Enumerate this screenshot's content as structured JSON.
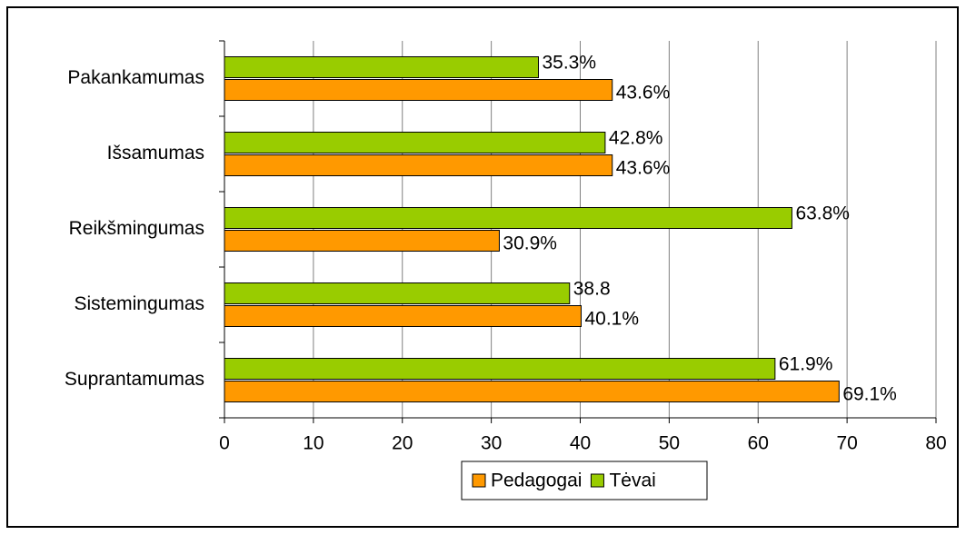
{
  "chart_data": {
    "type": "hbar",
    "categories": [
      "Pakankamumas",
      "Išsamumas",
      "Reikšmingumas",
      "Sistemingumas",
      "Suprantamumas"
    ],
    "series": [
      {
        "name": "Pedagogai",
        "color": "#ff9900",
        "values": [
          43.6,
          43.6,
          30.9,
          40.1,
          69.1
        ],
        "value_labels": [
          "43.6%",
          "43.6%",
          "30.9%",
          "40.1%",
          "69.1%"
        ]
      },
      {
        "name": "Tėvai",
        "color": "#99cc00",
        "values": [
          35.3,
          42.8,
          63.8,
          38.8,
          61.9
        ],
        "value_labels": [
          "35.3%",
          "42.8%",
          "63.8%",
          "38.8",
          "61.9%"
        ]
      }
    ],
    "xlim": [
      0,
      80
    ],
    "xticks": [
      0,
      10,
      20,
      30,
      40,
      50,
      60,
      70,
      80
    ],
    "grid": true,
    "legend": "bottom"
  }
}
